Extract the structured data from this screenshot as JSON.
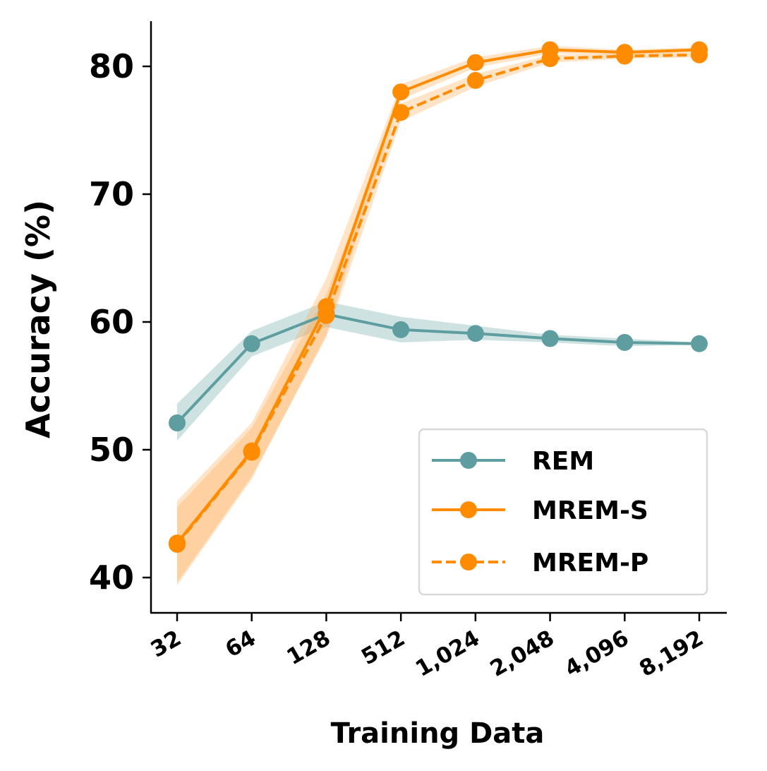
{
  "chart_data": {
    "type": "line",
    "title": "",
    "xlabel": "Training Data",
    "ylabel": "Accuracy (%)",
    "categories": [
      "32",
      "64",
      "128",
      "512",
      "1,024",
      "2,048",
      "4,096",
      "8,192"
    ],
    "ylim": [
      37,
      83.5
    ],
    "yticks": [
      40,
      50,
      60,
      70,
      80
    ],
    "grid": false,
    "legend_position": "bottom-right",
    "series": [
      {
        "name": "REM",
        "color": "#5f9ea0",
        "band_color": "#5f9ea0",
        "style": "solid",
        "values": [
          52.1,
          58.3,
          60.6,
          59.4,
          59.1,
          58.7,
          58.4,
          58.3
        ],
        "lower": [
          50.7,
          57.3,
          59.6,
          58.4,
          58.6,
          58.4,
          58.1,
          58.2
        ],
        "upper": [
          53.6,
          59.3,
          61.6,
          60.4,
          59.7,
          59.0,
          58.7,
          58.4
        ]
      },
      {
        "name": "MREM-S",
        "color": "#ff8c00",
        "band_color": "#ffa54a",
        "style": "solid",
        "values": [
          42.7,
          49.9,
          61.2,
          78.0,
          80.3,
          81.3,
          81.1,
          81.3
        ],
        "lower": [
          39.4,
          47.7,
          59.0,
          77.4,
          79.9,
          81.0,
          80.9,
          81.1
        ],
        "upper": [
          46.0,
          52.1,
          63.4,
          78.6,
          80.7,
          81.6,
          81.3,
          81.5
        ]
      },
      {
        "name": "MREM-P",
        "color": "#ff8c00",
        "band_color": "#ffa54a",
        "style": "dashed",
        "values": [
          42.6,
          49.8,
          60.5,
          76.4,
          78.9,
          80.6,
          80.8,
          80.9
        ],
        "lower": [
          39.6,
          47.9,
          58.8,
          75.7,
          78.4,
          80.3,
          80.6,
          80.7
        ],
        "upper": [
          45.5,
          51.7,
          62.2,
          77.1,
          79.4,
          80.9,
          81.0,
          81.1
        ]
      }
    ]
  }
}
